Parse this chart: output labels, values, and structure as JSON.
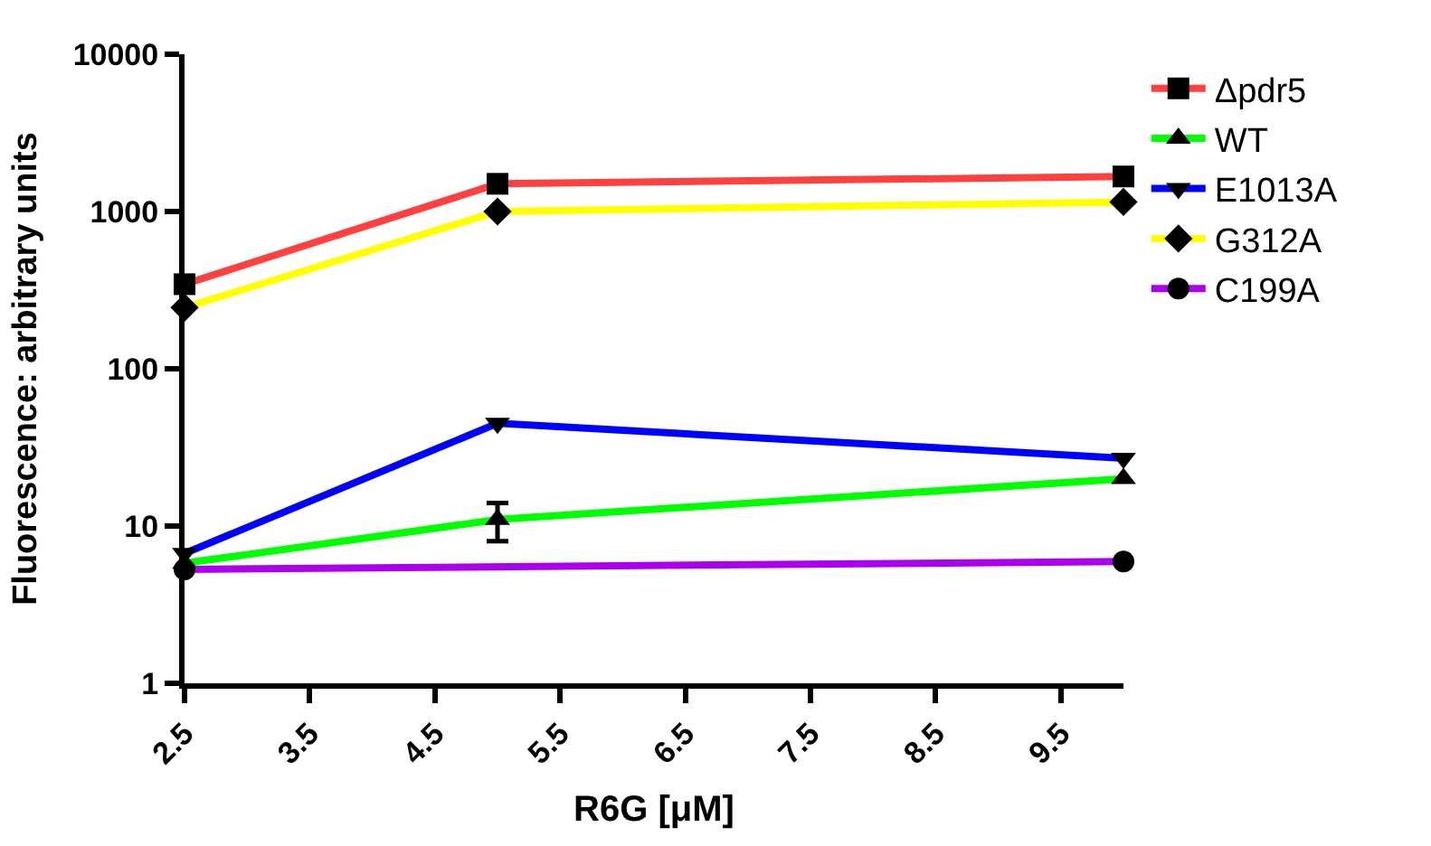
{
  "chart_data": {
    "type": "line",
    "xlabel": "R6G [μM]",
    "ylabel": "Fluorescence: arbitrary units",
    "xlim": [
      2.5,
      10
    ],
    "xticks": [
      2.5,
      3.5,
      4.5,
      5.5,
      6.5,
      7.5,
      8.5,
      9.5
    ],
    "ylim": [
      1,
      10000
    ],
    "yticks": [
      1,
      10,
      100,
      1000,
      10000
    ],
    "log": true,
    "legend": "top right",
    "line_style": "solid",
    "x": [
      2.5,
      5,
      10
    ],
    "series": [
      {
        "name": "Δpdr5",
        "color": "#ff4040",
        "marker": "square",
        "values": [
          345,
          1500,
          1670
        ]
      },
      {
        "name": "WT",
        "color": "#00ff00",
        "marker": "triangle",
        "values": [
          5.8,
          11,
          20
        ],
        "errors": [
          null,
          3,
          null
        ]
      },
      {
        "name": "E1013A",
        "color": "#0000ff",
        "marker": "triangle-down",
        "values": [
          6.7,
          45,
          27
        ]
      },
      {
        "name": "G312A",
        "color": "#ffff00",
        "marker": "diamond",
        "values": [
          245,
          1000,
          1150
        ]
      },
      {
        "name": "C199A",
        "color": "#aa00ee",
        "marker": "circle",
        "x": [
          2.5,
          10
        ],
        "values": [
          5.3,
          5.95
        ]
      }
    ]
  }
}
